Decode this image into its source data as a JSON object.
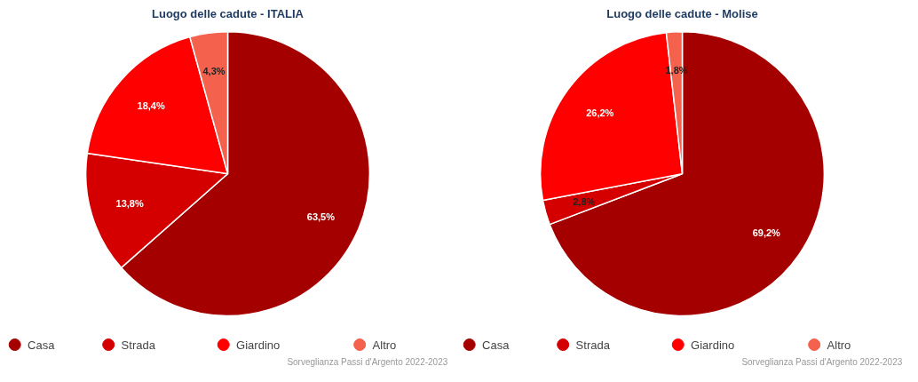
{
  "chart_data": [
    {
      "type": "pie",
      "title": "Luogo delle cadute - ITALIA",
      "categories": [
        "Casa",
        "Strada",
        "Giardino",
        "Altro"
      ],
      "values": [
        63.5,
        13.8,
        18.4,
        4.3
      ],
      "colors": [
        "#a50000",
        "#d40000",
        "#ff0000",
        "#f4614c"
      ],
      "value_labels": [
        "63,5%",
        "13,8%",
        "18,4%",
        "4,3%"
      ],
      "legend": "bottom",
      "annotations": [
        "Sorveglianza Passi d'Argento 2022-2023"
      ]
    },
    {
      "type": "pie",
      "title": "Luogo delle cadute - Molise",
      "categories": [
        "Casa",
        "Strada",
        "Giardino",
        "Altro"
      ],
      "values": [
        69.2,
        2.8,
        26.2,
        1.8
      ],
      "colors": [
        "#a50000",
        "#d40000",
        "#ff0000",
        "#f4614c"
      ],
      "value_labels": [
        "69,2%",
        "2,8%",
        "26,2%",
        "1,8%"
      ],
      "legend": "bottom",
      "annotations": [
        "Sorveglianza Passi d'Argento 2022-2023"
      ]
    }
  ]
}
